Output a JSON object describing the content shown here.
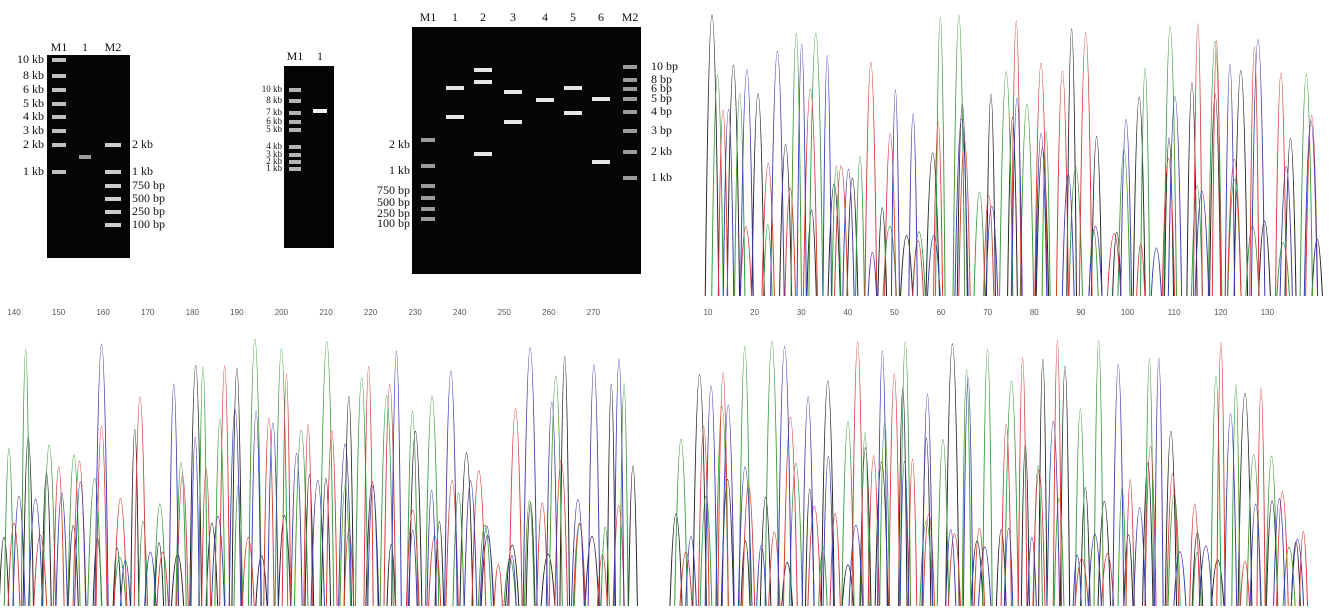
{
  "gel_a": {
    "lanes": [
      "M1",
      "1",
      "M2"
    ],
    "left_markers": [
      "10 kb",
      "8 kb",
      "6 kb",
      "5 kb",
      "4 kb",
      "3 kb",
      "2 kb",
      "1 kb"
    ],
    "right_markers": [
      "2 kb",
      "1 kb",
      "750 bp",
      "500 bp",
      "250 bp",
      "100 bp"
    ]
  },
  "gel_b": {
    "lanes": [
      "M1",
      "1"
    ],
    "left_markers": [
      "10 kb",
      "8 kb",
      "7 kb",
      "6 kb",
      "5 kb",
      "4 kb",
      "3 kb",
      "2 kb",
      "1 kb"
    ]
  },
  "gel_c": {
    "lanes": [
      "M1",
      "1",
      "2",
      "3",
      "4",
      "5",
      "6",
      "M2"
    ],
    "left_markers": [
      "2 kb",
      "1 kb",
      "750 bp",
      "500 bp",
      "250 bp",
      "100 bp"
    ],
    "right_markers": [
      "10 bp",
      "8 bp",
      "6 bp",
      "5 bp",
      "4 bp",
      "3 bp",
      "2 kb",
      "1 kb"
    ]
  },
  "chromatogram_b": {
    "positions": [
      140,
      150,
      160,
      170,
      180,
      190,
      200,
      210,
      220,
      230,
      240,
      250,
      260,
      270
    ]
  },
  "chromatogram_c": {
    "positions": [
      10,
      20,
      30,
      40,
      50,
      60,
      70,
      80,
      90,
      100,
      110,
      120,
      130
    ]
  }
}
